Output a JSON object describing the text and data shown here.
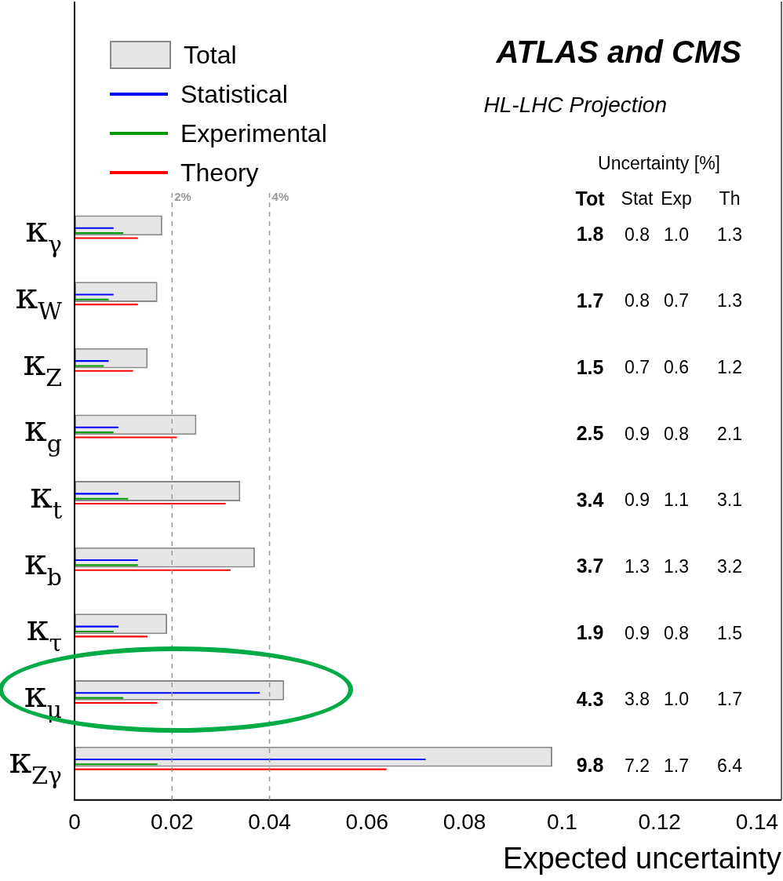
{
  "chart_data": {
    "type": "bar",
    "orientation": "horizontal",
    "title": "ATLAS and CMS",
    "subtitle": "HL-LHC Projection",
    "xlabel": "Expected uncertainty",
    "categories": [
      "κ$_{γ}$",
      "κ$_{W}$",
      "κ$_{Z}$",
      "κ$_{g}$",
      "κ$_{t}$",
      "κ$_{b}$",
      "κ$_{τ}$",
      "κ$_{μ}$",
      "κ$_{Zγ}$"
    ],
    "series": [
      {
        "name": "Total",
        "color": "#e6e6e6",
        "values": [
          0.018,
          0.017,
          0.015,
          0.025,
          0.034,
          0.037,
          0.019,
          0.043,
          0.098
        ]
      },
      {
        "name": "Statistical",
        "color": "#0000ff",
        "values": [
          0.008,
          0.008,
          0.007,
          0.009,
          0.009,
          0.013,
          0.009,
          0.038,
          0.072
        ]
      },
      {
        "name": "Experimental",
        "color": "#009900",
        "values": [
          0.01,
          0.007,
          0.006,
          0.008,
          0.011,
          0.013,
          0.008,
          0.01,
          0.017
        ]
      },
      {
        "name": "Theory",
        "color": "#ff0000",
        "values": [
          0.013,
          0.013,
          0.012,
          0.021,
          0.031,
          0.032,
          0.015,
          0.017,
          0.064
        ]
      }
    ],
    "xlim": [
      0,
      0.145
    ],
    "xticks": [
      0,
      0.02,
      0.04,
      0.06,
      0.08,
      0.1,
      0.12,
      0.14
    ],
    "ref_lines": [
      {
        "axis": "x",
        "value": 0.02,
        "label": "2%",
        "color": "#999999",
        "line_style": "dashed"
      },
      {
        "axis": "x",
        "value": 0.04,
        "label": "4%",
        "color": "#999999",
        "line_style": "dashed"
      }
    ],
    "annotations": [
      "Uncertainty [%]",
      "Tot",
      "Stat",
      "Exp",
      "Th",
      "1.8",
      "0.8",
      "1.0",
      "1.3",
      "1.7",
      "0.8",
      "0.7",
      "1.3",
      "1.5",
      "0.7",
      "0.6",
      "1.2",
      "2.5",
      "0.9",
      "0.8",
      "2.1",
      "3.4",
      "0.9",
      "1.1",
      "3.1",
      "3.7",
      "1.3",
      "1.3",
      "3.2",
      "1.9",
      "0.9",
      "0.8",
      "1.5",
      "4.3",
      "3.8",
      "1.0",
      "1.7",
      "9.8",
      "7.2",
      "1.7",
      "6.4"
    ],
    "legend": "top left"
  }
}
